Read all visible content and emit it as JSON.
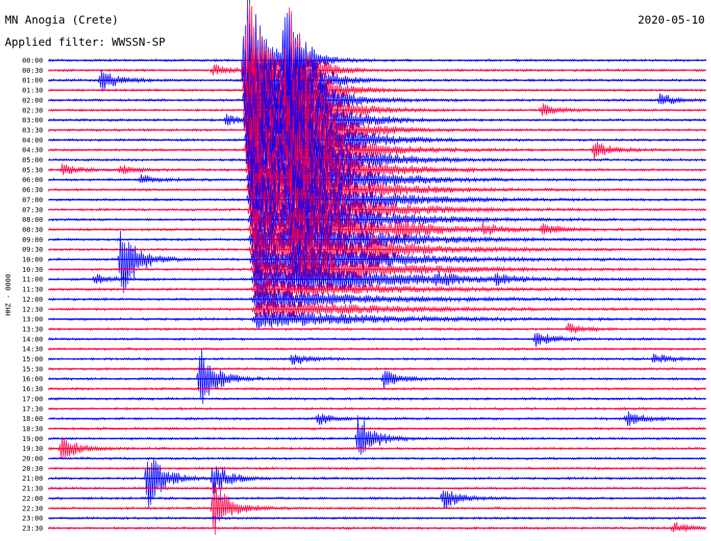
{
  "header": {
    "station": "MN Anogia (Crete)",
    "filter": "Applied filter: WWSSN-SP",
    "date": "2020-05-10"
  },
  "chart_data": {
    "type": "line",
    "title": "MN Anogia (Crete)",
    "subtitle": "Applied filter: WWSSN-SP",
    "date": "2020-05-10",
    "ylabel": "HHZ - 0000",
    "xlabel": "",
    "row_interval_minutes": 30,
    "tick_labels": [
      "00:00",
      "00:30",
      "01:00",
      "01:30",
      "02:00",
      "02:30",
      "03:00",
      "03:30",
      "04:00",
      "04:30",
      "05:00",
      "05:30",
      "06:00",
      "06:30",
      "07:00",
      "07:30",
      "08:00",
      "08:30",
      "09:00",
      "09:30",
      "10:00",
      "10:30",
      "11:00",
      "11:30",
      "12:00",
      "12:30",
      "13:00",
      "13:30",
      "14:00",
      "14:30",
      "15:00",
      "15:30",
      "16:00",
      "16:30",
      "17:00",
      "17:30",
      "18:00",
      "18:30",
      "19:00",
      "19:30",
      "20:00",
      "20:30",
      "21:00",
      "21:30",
      "22:00",
      "22:30",
      "23:00",
      "23:30"
    ],
    "trace_colors": [
      "#0000ff",
      "#ff0040"
    ],
    "events": [
      {
        "row": 1,
        "pos": 0.25,
        "amp": 8
      },
      {
        "row": 2,
        "pos": 0.08,
        "amp": 18
      },
      {
        "row": 4,
        "pos": 0.93,
        "amp": 10
      },
      {
        "row": 5,
        "pos": 0.75,
        "amp": 10
      },
      {
        "row": 6,
        "pos": 0.27,
        "amp": 8
      },
      {
        "row": 9,
        "pos": 0.83,
        "amp": 14
      },
      {
        "row": 11,
        "pos": 0.02,
        "amp": 8
      },
      {
        "row": 11,
        "pos": 0.11,
        "amp": 8
      },
      {
        "row": 12,
        "pos": 0.14,
        "amp": 8
      },
      {
        "row": 17,
        "pos": 0.53,
        "amp": 14
      },
      {
        "row": 17,
        "pos": 0.66,
        "amp": 8
      },
      {
        "row": 17,
        "pos": 0.75,
        "amp": 8
      },
      {
        "row": 19,
        "pos": 0.49,
        "amp": 18
      },
      {
        "row": 20,
        "pos": 0.11,
        "amp": 60
      },
      {
        "row": 22,
        "pos": 0.07,
        "amp": 8
      },
      {
        "row": 22,
        "pos": 0.59,
        "amp": 8
      },
      {
        "row": 22,
        "pos": 0.68,
        "amp": 8
      },
      {
        "row": 27,
        "pos": 0.79,
        "amp": 8
      },
      {
        "row": 28,
        "pos": 0.74,
        "amp": 12
      },
      {
        "row": 30,
        "pos": 0.37,
        "amp": 10
      },
      {
        "row": 30,
        "pos": 0.92,
        "amp": 8
      },
      {
        "row": 32,
        "pos": 0.23,
        "amp": 50
      },
      {
        "row": 32,
        "pos": 0.51,
        "amp": 14
      },
      {
        "row": 36,
        "pos": 0.41,
        "amp": 10
      },
      {
        "row": 36,
        "pos": 0.88,
        "amp": 12
      },
      {
        "row": 38,
        "pos": 0.47,
        "amp": 40
      },
      {
        "row": 39,
        "pos": 0.02,
        "amp": 20
      },
      {
        "row": 42,
        "pos": 0.15,
        "amp": 50
      },
      {
        "row": 42,
        "pos": 0.25,
        "amp": 25
      },
      {
        "row": 44,
        "pos": 0.6,
        "amp": 20
      },
      {
        "row": 45,
        "pos": 0.25,
        "amp": 45
      },
      {
        "row": 47,
        "pos": 0.95,
        "amp": 10
      }
    ],
    "mainshock": {
      "row": 0,
      "pos": 0.3,
      "amp": 140,
      "coda_rows": 26
    },
    "mainshock_secondary": {
      "row": 0,
      "pos": 0.36,
      "amp": 120,
      "coda_rows": 22
    }
  }
}
